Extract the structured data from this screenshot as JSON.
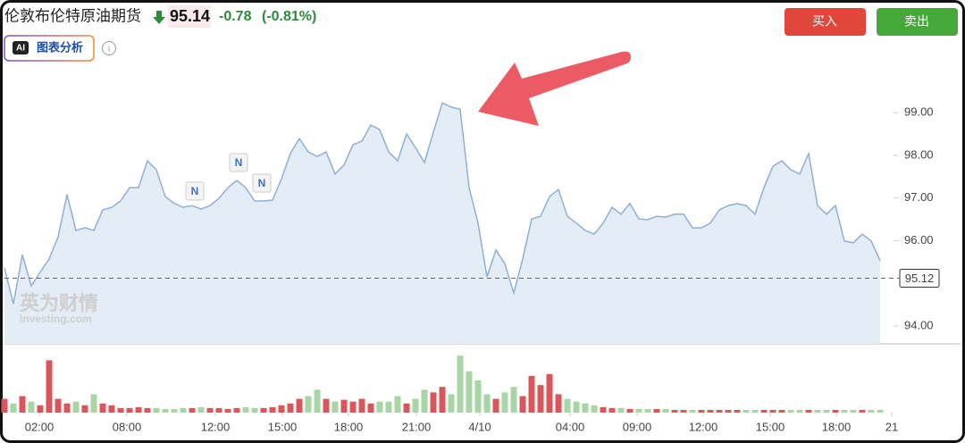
{
  "header": {
    "title": "伦敦布伦特原油期货",
    "price": "95.14",
    "change": "-0.78",
    "change_pct": "(-0.81%)",
    "buy": "买入",
    "sell": "卖出",
    "ai_badge": "AI",
    "ai_label": "图表分析"
  },
  "watermark": {
    "cn": "英为财情",
    "en": "Investing.com"
  },
  "news_markers": [
    "N",
    "N",
    "N"
  ],
  "chart_data": {
    "type": "line",
    "values": [
      95.36,
      94.52,
      95.67,
      94.94,
      95.26,
      95.57,
      96.09,
      97.08,
      96.24,
      96.3,
      96.24,
      96.72,
      96.78,
      96.93,
      97.24,
      97.24,
      97.87,
      97.66,
      97.03,
      96.87,
      96.78,
      96.82,
      96.74,
      96.82,
      96.99,
      97.24,
      97.41,
      97.24,
      96.93,
      96.93,
      96.95,
      97.45,
      98.04,
      98.39,
      98.08,
      97.97,
      98.08,
      97.56,
      97.77,
      98.25,
      98.33,
      98.71,
      98.6,
      98.08,
      97.87,
      98.5,
      98.18,
      97.83,
      98.54,
      99.23,
      99.13,
      99.08,
      97.24,
      96.41,
      95.15,
      95.78,
      95.46,
      94.77,
      95.57,
      96.51,
      96.57,
      97.03,
      97.2,
      96.57,
      96.41,
      96.24,
      96.15,
      96.41,
      96.78,
      96.62,
      96.87,
      96.51,
      96.49,
      96.57,
      96.55,
      96.62,
      96.62,
      96.3,
      96.3,
      96.41,
      96.72,
      96.82,
      96.87,
      96.82,
      96.62,
      97.24,
      97.74,
      97.87,
      97.66,
      97.56,
      98.04,
      96.82,
      96.62,
      96.82,
      95.99,
      95.95,
      96.15,
      95.99,
      95.53
    ],
    "volume": [
      15,
      10,
      18,
      12,
      8,
      57,
      15,
      10,
      12,
      8,
      20,
      10,
      8,
      5,
      5,
      6,
      5,
      5,
      4,
      4,
      5,
      5,
      6,
      5,
      5,
      4,
      5,
      6,
      5,
      5,
      6,
      8,
      10,
      15,
      18,
      25,
      15,
      12,
      14,
      12,
      15,
      10,
      12,
      12,
      18,
      10,
      15,
      25,
      22,
      28,
      20,
      62,
      45,
      35,
      20,
      15,
      22,
      28,
      18,
      40,
      30,
      42,
      20,
      15,
      12,
      10,
      8,
      6,
      5,
      5,
      4,
      4,
      4,
      4,
      4,
      3,
      3,
      3,
      3,
      3,
      3,
      3,
      3,
      3,
      3,
      3,
      3,
      3,
      3,
      3,
      3,
      3,
      3,
      3,
      3,
      3,
      3,
      3,
      3
    ],
    "color": "#8fb0d4",
    "fill": "#e4ecf5",
    "up_color": "#d9575b",
    "down_color": "#a8d5a4",
    "xlim": [
      0,
      99.5
    ],
    "ylim": [
      93.58,
      100.07
    ],
    "vlim": [
      0,
      70
    ],
    "xticks": [
      {
        "value": 3.9,
        "label": "02:00"
      },
      {
        "value": 13.7,
        "label": "08:00"
      },
      {
        "value": 23.6,
        "label": "12:00"
      },
      {
        "value": 31.1,
        "label": "15:00"
      },
      {
        "value": 38.5,
        "label": "18:00"
      },
      {
        "value": 46.1,
        "label": "21:00"
      },
      {
        "value": 53.2,
        "label": "4/10"
      },
      {
        "value": 63.3,
        "label": "04:00"
      },
      {
        "value": 70.8,
        "label": "09:00"
      },
      {
        "value": 78.2,
        "label": "12:00"
      },
      {
        "value": 85.7,
        "label": "15:00"
      },
      {
        "value": 93.1,
        "label": "18:00"
      },
      {
        "value": 99.3,
        "label": "21"
      }
    ],
    "yticks": [
      {
        "value": 94,
        "label": "94.00"
      },
      {
        "value": 96,
        "label": "96.00"
      },
      {
        "value": 97,
        "label": "97.00"
      },
      {
        "value": 98,
        "label": "98.00"
      },
      {
        "value": 99,
        "label": "99.00"
      }
    ],
    "last_price": {
      "value": 95.12,
      "label": "95.12"
    },
    "grid": false
  }
}
